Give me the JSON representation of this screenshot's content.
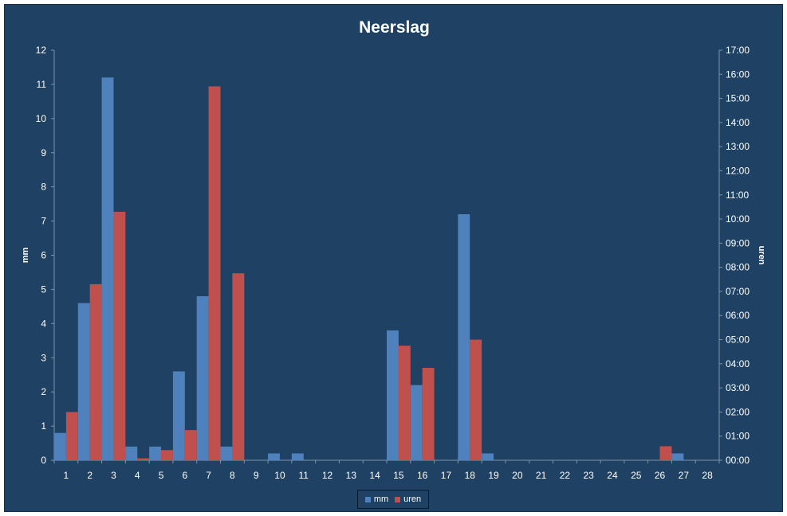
{
  "chart_data": {
    "type": "bar",
    "title": "Neerslag",
    "categories": [
      "1",
      "2",
      "3",
      "4",
      "5",
      "6",
      "7",
      "8",
      "9",
      "10",
      "11",
      "12",
      "13",
      "14",
      "15",
      "16",
      "17",
      "18",
      "19",
      "20",
      "21",
      "22",
      "23",
      "24",
      "25",
      "26",
      "27",
      "28"
    ],
    "series": [
      {
        "name": "mm",
        "axis": "left",
        "color": "#4f81bd",
        "values": [
          0.8,
          4.6,
          11.2,
          0.4,
          0.4,
          2.6,
          4.8,
          0.4,
          0,
          0.2,
          0.2,
          0,
          0,
          0,
          3.8,
          2.2,
          0,
          7.2,
          0.2,
          0,
          0,
          0,
          0,
          0,
          0,
          0,
          0.2,
          0
        ]
      },
      {
        "name": "uren",
        "axis": "right",
        "unit": "hours",
        "color": "#c0504d",
        "values": [
          2.0,
          7.3,
          10.3,
          0.08,
          0.42,
          1.25,
          15.5,
          7.75,
          0,
          0,
          0,
          0,
          0,
          0,
          4.75,
          3.83,
          0,
          5.0,
          0,
          0,
          0,
          0,
          0,
          0,
          0,
          0.58,
          0,
          0
        ]
      }
    ],
    "ylabel": "mm",
    "ylim": [
      0,
      12
    ],
    "yticks": [
      "0",
      "1",
      "2",
      "3",
      "4",
      "5",
      "6",
      "7",
      "8",
      "9",
      "10",
      "11",
      "12"
    ],
    "y2label": "uren",
    "y2lim": [
      0,
      17
    ],
    "y2ticks": [
      "00:00",
      "01:00",
      "02:00",
      "03:00",
      "04:00",
      "05:00",
      "06:00",
      "07:00",
      "08:00",
      "09:00",
      "10:00",
      "11:00",
      "12:00",
      "13:00",
      "14:00",
      "15:00",
      "16:00",
      "17:00"
    ],
    "grid": false,
    "legend_position": "bottom",
    "background_color": "#1f4264"
  }
}
